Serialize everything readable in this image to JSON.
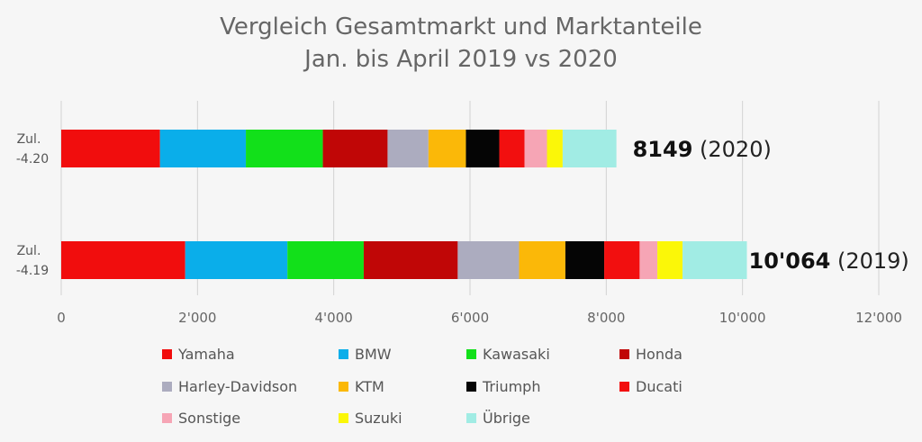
{
  "chart_data": {
    "type": "bar",
    "orientation": "horizontal",
    "stacked": true,
    "title_line1": "Vergleich Gesamtmarkt und Marktanteile",
    "title_line2": "Jan. bis April 2019 vs 2020",
    "categories": [
      {
        "label_line1": "Zul.",
        "label_line2": "-4.20",
        "total_text": "8149",
        "year_text": "(2020)"
      },
      {
        "label_line1": "Zul.",
        "label_line2": "-4.19",
        "total_text": "10'064",
        "year_text": "(2019)"
      }
    ],
    "series": [
      {
        "name": "Yamaha",
        "color": "#f10d0d",
        "values": [
          1450,
          1820
        ]
      },
      {
        "name": "BMW",
        "color": "#0aaeea",
        "values": [
          1260,
          1500
        ]
      },
      {
        "name": "Kawasaki",
        "color": "#12e01a",
        "values": [
          1130,
          1120
        ]
      },
      {
        "name": "Honda",
        "color": "#c00606",
        "values": [
          950,
          1380
        ]
      },
      {
        "name": "Harley-Davidson",
        "color": "#acacbf",
        "values": [
          600,
          900
        ]
      },
      {
        "name": "KTM",
        "color": "#fbb808",
        "values": [
          550,
          680
        ]
      },
      {
        "name": "Triumph",
        "color": "#050505",
        "values": [
          490,
          570
        ]
      },
      {
        "name": "Ducati",
        "color": "#f20f0f",
        "values": [
          370,
          520
        ]
      },
      {
        "name": "Sonstige",
        "color": "#f6a5b5",
        "values": [
          330,
          260
        ]
      },
      {
        "name": "Suzuki",
        "color": "#fbf708",
        "values": [
          230,
          370
        ]
      },
      {
        "name": "Übrige",
        "color": "#a1ece4",
        "values": [
          789,
          944
        ]
      }
    ],
    "xlim": [
      0,
      12000
    ],
    "xticks": [
      {
        "value": 0,
        "label": "0"
      },
      {
        "value": 2000,
        "label": "2'000"
      },
      {
        "value": 4000,
        "label": "4'000"
      },
      {
        "value": 6000,
        "label": "6'000"
      },
      {
        "value": 8000,
        "label": "8'000"
      },
      {
        "value": 10000,
        "label": "10'000"
      },
      {
        "value": 12000,
        "label": "12'000"
      }
    ],
    "grid": "vertical",
    "legend_position": "bottom"
  }
}
